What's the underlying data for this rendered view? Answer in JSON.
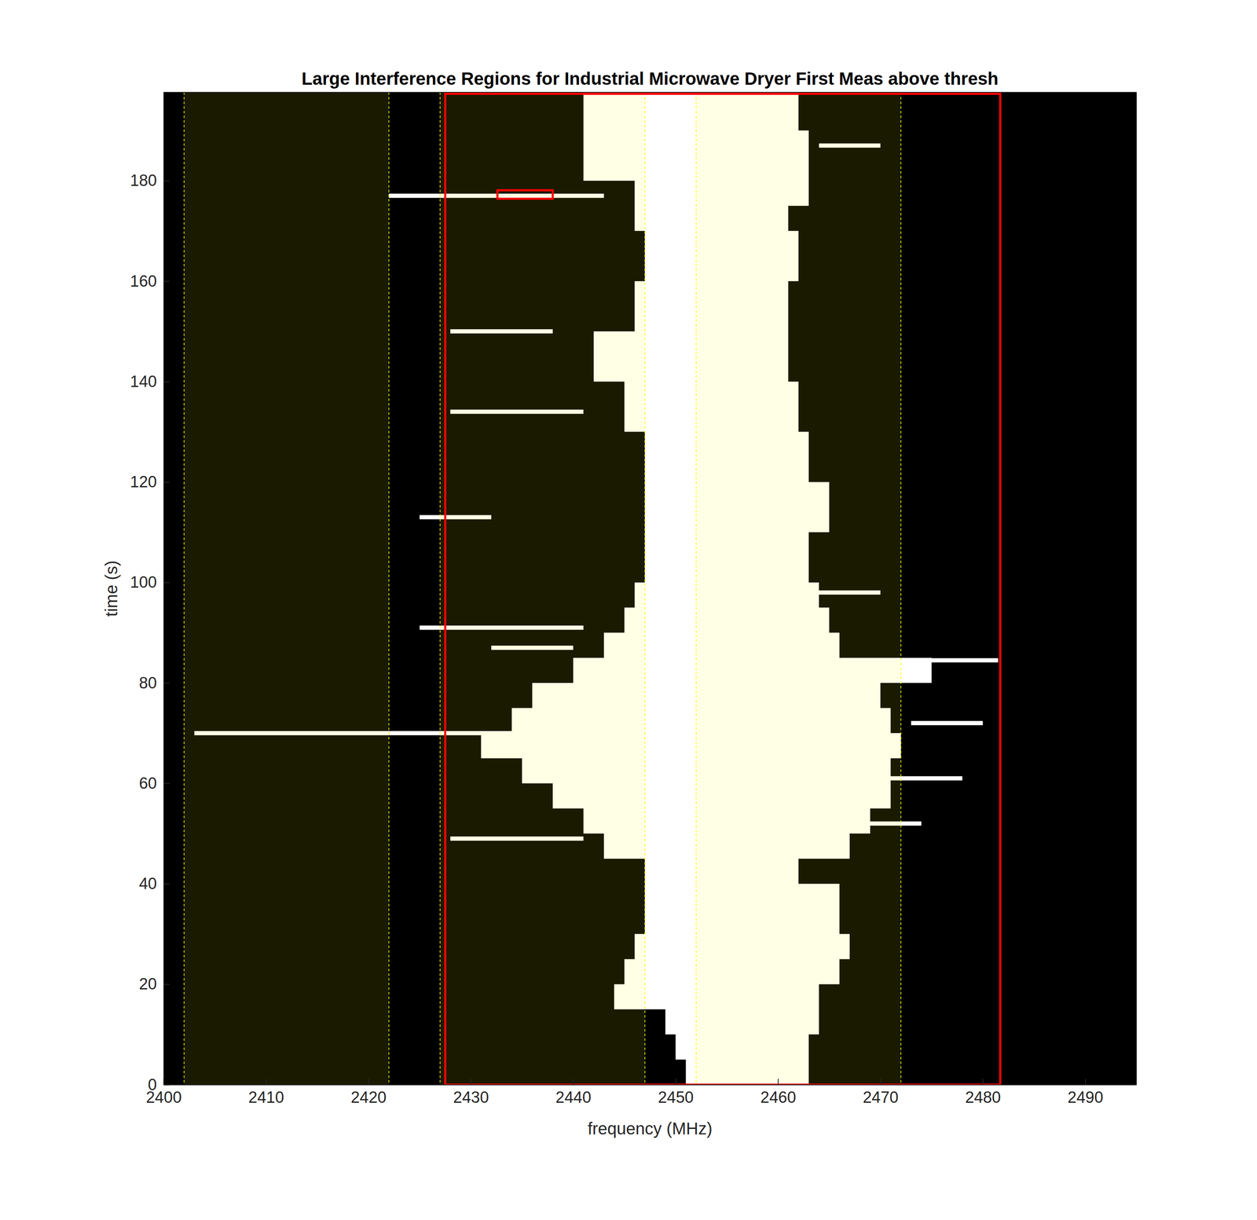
{
  "chart_data": {
    "type": "heatmap",
    "title": "Large Interference Regions for Industrial Microwave Dryer First Meas above thresh",
    "x_label": "frequency (MHz)",
    "y_label": "time (s)",
    "xlim": [
      2400,
      2495
    ],
    "ylim": [
      0,
      197.6
    ],
    "xticks": [
      2400,
      2410,
      2420,
      2430,
      2440,
      2450,
      2460,
      2470,
      2480,
      2490
    ],
    "yticks": [
      0,
      20,
      40,
      60,
      80,
      100,
      120,
      140,
      160,
      180
    ],
    "channels": [
      [
        2402,
        2422
      ],
      [
        2427,
        2447
      ],
      [
        2452,
        2472
      ]
    ],
    "time": [
      0,
      5,
      10,
      15,
      20,
      25,
      30,
      35,
      40,
      45,
      50,
      55,
      60,
      65,
      70,
      75,
      80,
      85,
      90,
      95,
      100,
      110,
      120,
      130,
      140,
      150,
      160,
      170,
      175,
      180,
      190,
      197.6
    ],
    "occupied_low": [
      2452,
      2451,
      2450,
      2449,
      2444,
      2445,
      2446,
      2447,
      2447,
      2447,
      2443,
      2441,
      2438,
      2435,
      2431,
      2434,
      2436,
      2440,
      2443,
      2445,
      2446,
      2447,
      2447,
      2447,
      2445,
      2442,
      2446,
      2447,
      2446,
      2446,
      2441,
      2441
    ],
    "occupied_high": [
      2463,
      2463,
      2463,
      2464,
      2464,
      2466,
      2467,
      2466,
      2466,
      2462,
      2467,
      2469,
      2471,
      2471,
      2472,
      2471,
      2470,
      2475,
      2466,
      2465,
      2464,
      2463,
      2465,
      2463,
      2462,
      2461,
      2461,
      2462,
      2461,
      2463,
      2463,
      2462
    ],
    "streaks": [
      {
        "time": 177,
        "freq": [
          2422,
          2443
        ]
      },
      {
        "time": 70,
        "freq": [
          2403,
          2435
        ]
      },
      {
        "time": 91,
        "freq": [
          2425,
          2441
        ]
      },
      {
        "time": 134,
        "freq": [
          2428,
          2441
        ]
      },
      {
        "time": 84.5,
        "freq": [
          2472,
          2481.5
        ]
      },
      {
        "time": 72,
        "freq": [
          2473,
          2480
        ]
      },
      {
        "time": 61,
        "freq": [
          2470,
          2478
        ]
      },
      {
        "time": 49,
        "freq": [
          2428,
          2441
        ]
      },
      {
        "time": 113,
        "freq": [
          2425,
          2432
        ]
      },
      {
        "time": 150,
        "freq": [
          2428,
          2438
        ]
      },
      {
        "time": 87,
        "freq": [
          2432,
          2440
        ]
      },
      {
        "time": 52,
        "freq": [
          2466,
          2474
        ]
      },
      {
        "time": 187,
        "freq": [
          2464,
          2470
        ]
      },
      {
        "time": 98,
        "freq": [
          2462,
          2470
        ]
      }
    ],
    "regions": [
      {
        "freq": [
          2427.5,
          2481.7
        ],
        "time": [
          0,
          197.3
        ]
      },
      {
        "freq": [
          2432.6,
          2438.0
        ],
        "time": [
          176.4,
          178.1
        ]
      }
    ]
  }
}
